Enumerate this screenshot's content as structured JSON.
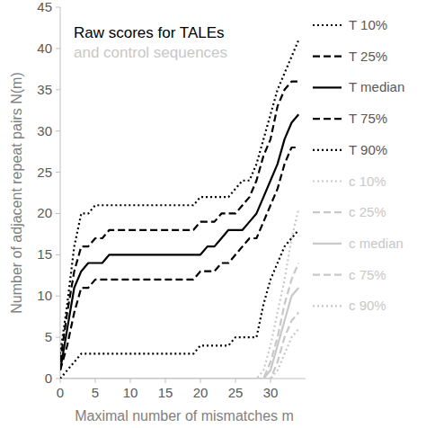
{
  "chart_data": {
    "type": "line",
    "title": "Raw scores for TALEs",
    "subtitle": "and control sequences",
    "x_label": "Maximal number of mismatches m",
    "y_label": "Number of adjacent repeat pairs N(m)",
    "x": [
      0,
      1,
      2,
      3,
      4,
      5,
      6,
      7,
      8,
      9,
      10,
      11,
      12,
      13,
      14,
      15,
      16,
      17,
      18,
      19,
      20,
      21,
      22,
      23,
      24,
      25,
      26,
      27,
      28,
      29,
      30,
      31,
      32,
      33,
      34
    ],
    "xlim": [
      0,
      35
    ],
    "xticks": [
      0,
      5,
      10,
      15,
      20,
      25,
      30
    ],
    "ylim": [
      0,
      45
    ],
    "yticks": [
      0,
      5,
      10,
      15,
      20,
      25,
      30,
      35,
      40,
      45
    ],
    "grid": false,
    "legend": "right",
    "series": [
      {
        "name": "T 10%",
        "color": "#000000",
        "line_style": "dotted",
        "values": [
          3,
          9,
          16,
          20,
          20,
          21,
          21,
          21,
          21,
          21,
          21,
          21,
          21,
          21,
          21,
          21,
          21,
          21,
          21,
          21,
          22,
          22,
          22,
          22,
          22,
          23,
          24,
          24,
          26,
          29,
          32,
          35,
          37,
          39,
          41
        ]
      },
      {
        "name": "T 25%",
        "color": "#000000",
        "line_style": "dashed",
        "values": [
          2,
          8,
          13,
          16,
          16,
          17,
          17,
          18,
          18,
          18,
          18,
          18,
          18,
          18,
          18,
          18,
          18,
          18,
          18,
          18,
          19,
          19,
          19,
          20,
          20,
          20,
          21,
          22,
          24,
          27,
          29,
          33,
          35,
          36,
          36
        ]
      },
      {
        "name": "T median",
        "color": "#000000",
        "line_style": "solid",
        "values": [
          1,
          6,
          11,
          13,
          14,
          14,
          14,
          15,
          15,
          15,
          15,
          15,
          15,
          15,
          15,
          15,
          15,
          15,
          15,
          15,
          15,
          16,
          16,
          17,
          18,
          18,
          18,
          19,
          20,
          22,
          24,
          26,
          29,
          31,
          32
        ]
      },
      {
        "name": "T 75%",
        "color": "#000000",
        "line_style": "dashed",
        "values": [
          1,
          4,
          8,
          11,
          11,
          12,
          12,
          12,
          12,
          12,
          12,
          12,
          12,
          12,
          12,
          12,
          12,
          12,
          12,
          12,
          13,
          13,
          13,
          14,
          14,
          15,
          16,
          17,
          17,
          19,
          21,
          23,
          26,
          28,
          28
        ]
      },
      {
        "name": "T 90%",
        "color": "#000000",
        "line_style": "dotted",
        "values": [
          0,
          1,
          2,
          3,
          3,
          3,
          3,
          3,
          3,
          3,
          3,
          3,
          3,
          3,
          3,
          3,
          3,
          3,
          3,
          3,
          4,
          4,
          4,
          4,
          4,
          5,
          5,
          5,
          5,
          9,
          12,
          14,
          16,
          17,
          18
        ]
      },
      {
        "name": "c 10%",
        "color": "#c8c8c8",
        "line_style": "dotted",
        "values": [
          0,
          0,
          0,
          0,
          0,
          0,
          0,
          0,
          0,
          0,
          0,
          0,
          0,
          0,
          0,
          0,
          0,
          0,
          0,
          0,
          0,
          0,
          0,
          0,
          0,
          0,
          0,
          0,
          0,
          1,
          4,
          8,
          12,
          17,
          20.5
        ]
      },
      {
        "name": "c 25%",
        "color": "#c8c8c8",
        "line_style": "dashed",
        "values": [
          0,
          0,
          0,
          0,
          0,
          0,
          0,
          0,
          0,
          0,
          0,
          0,
          0,
          0,
          0,
          0,
          0,
          0,
          0,
          0,
          0,
          0,
          0,
          0,
          0,
          0,
          0,
          0,
          0,
          0,
          2,
          5,
          9,
          12,
          14
        ]
      },
      {
        "name": "c median",
        "color": "#c8c8c8",
        "line_style": "solid",
        "values": [
          0,
          0,
          0,
          0,
          0,
          0,
          0,
          0,
          0,
          0,
          0,
          0,
          0,
          0,
          0,
          0,
          0,
          0,
          0,
          0,
          0,
          0,
          0,
          0,
          0,
          0,
          0,
          0,
          0,
          0,
          1,
          4,
          7,
          10,
          11
        ]
      },
      {
        "name": "c 75%",
        "color": "#c8c8c8",
        "line_style": "dashed",
        "values": [
          0,
          0,
          0,
          0,
          0,
          0,
          0,
          0,
          0,
          0,
          0,
          0,
          0,
          0,
          0,
          0,
          0,
          0,
          0,
          0,
          0,
          0,
          0,
          0,
          0,
          0,
          0,
          0,
          0,
          0,
          0,
          2,
          5,
          7,
          8
        ]
      },
      {
        "name": "c 90%",
        "color": "#c8c8c8",
        "line_style": "dotted",
        "values": [
          0,
          0,
          0,
          0,
          0,
          0,
          0,
          0,
          0,
          0,
          0,
          0,
          0,
          0,
          0,
          0,
          0,
          0,
          0,
          0,
          0,
          0,
          0,
          0,
          0,
          0,
          0,
          0,
          0,
          0,
          0,
          1,
          3,
          5,
          6
        ]
      }
    ]
  }
}
